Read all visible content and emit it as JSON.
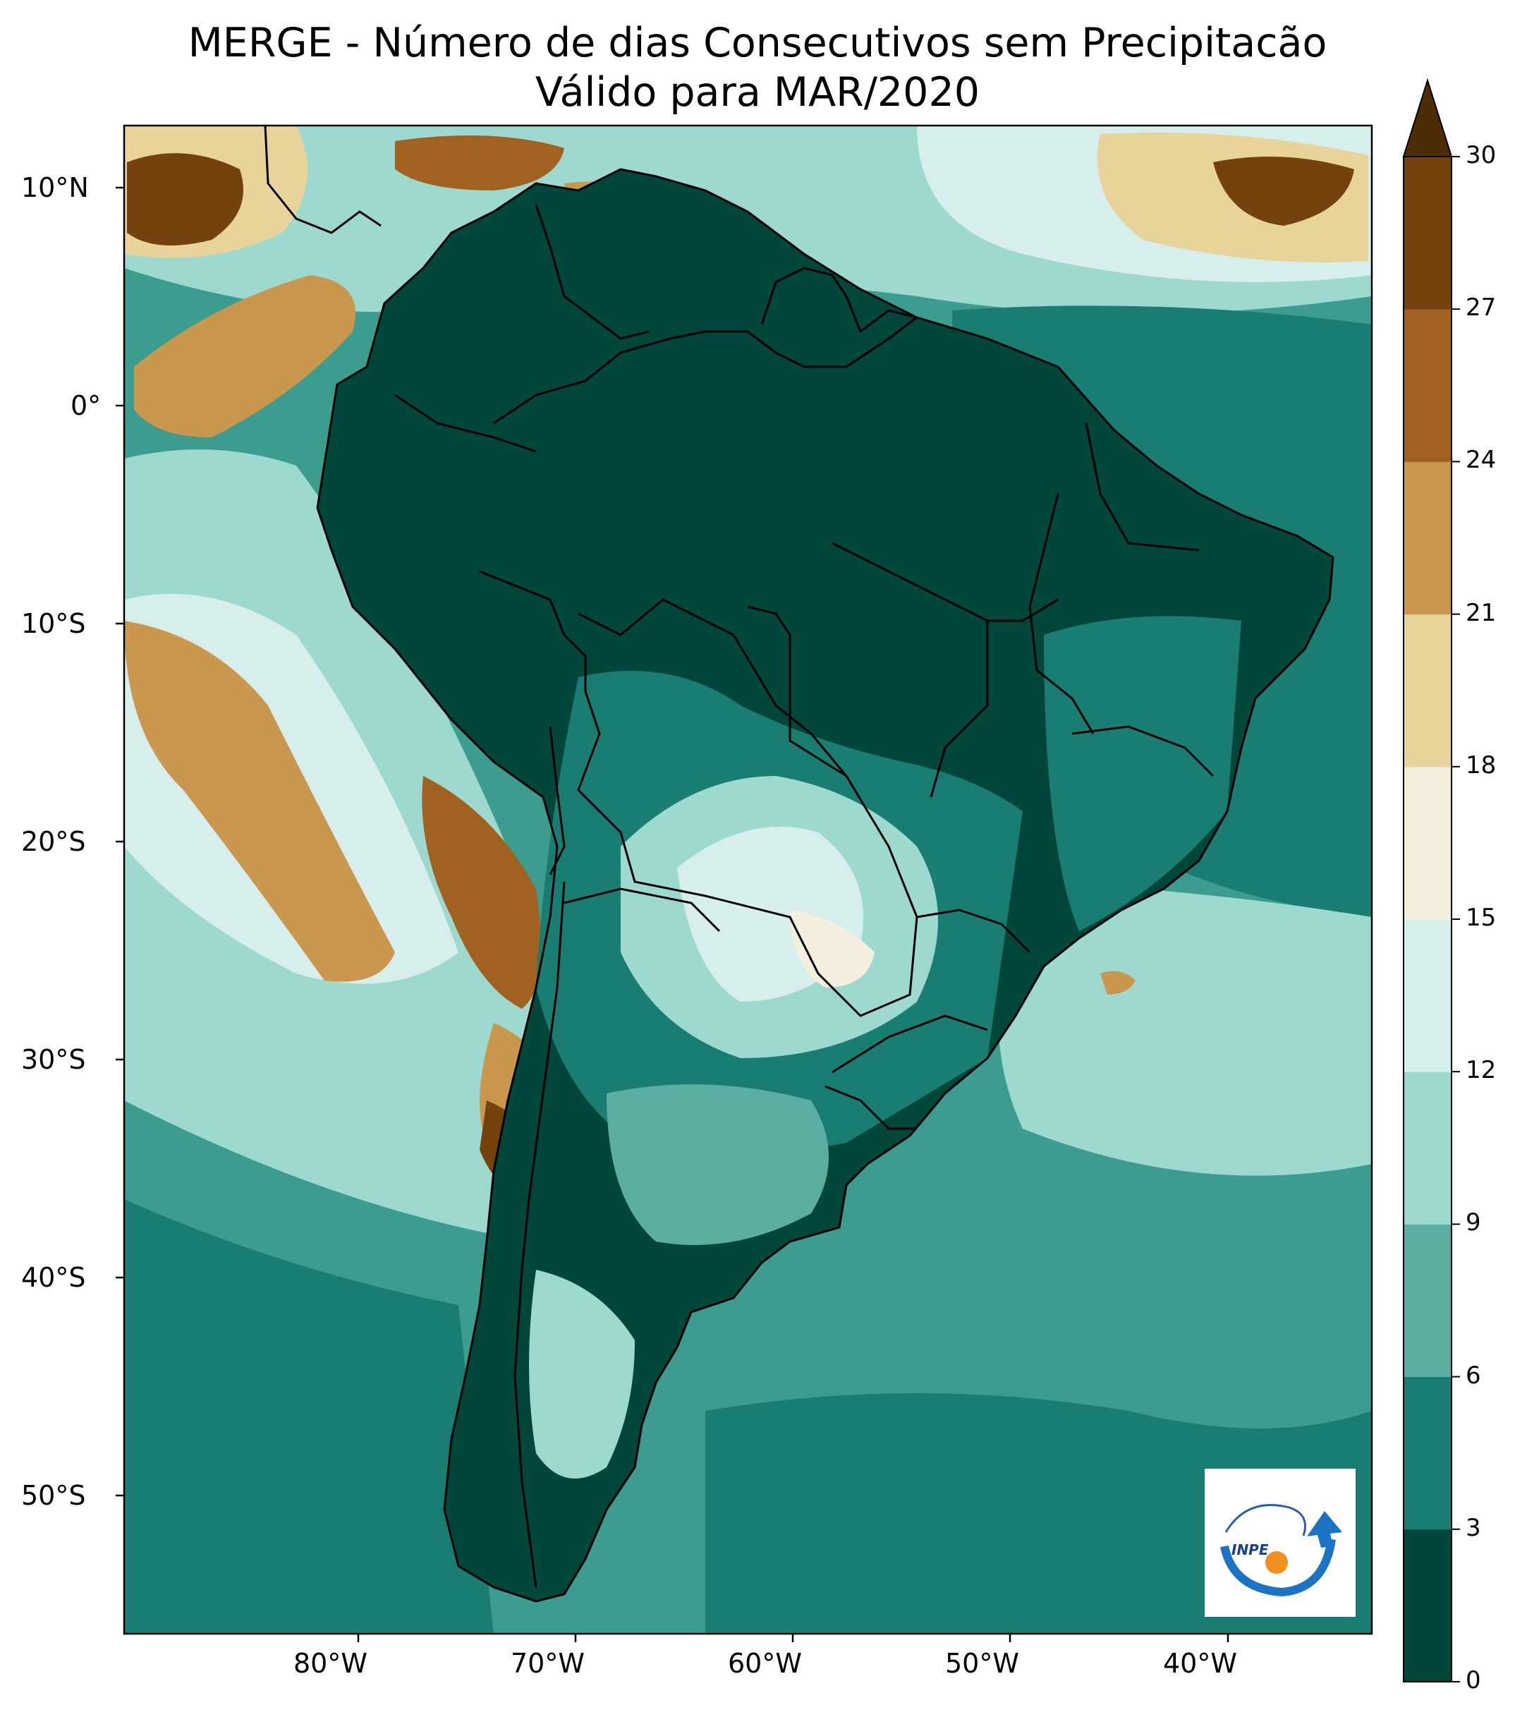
{
  "title": {
    "line1": "MERGE - Número de dias Consecutivos sem Precipitacão",
    "line2": "Válido para MAR/2020"
  },
  "axes": {
    "lon_ticks": [
      "80°W",
      "70°W",
      "60°W",
      "50°W",
      "40°W"
    ],
    "lat_ticks": [
      "10°N",
      "0°",
      "10°S",
      "20°S",
      "30°S",
      "40°S",
      "50°S"
    ],
    "extent": {
      "lon_min": -90,
      "lon_max": -32,
      "lat_min": -56,
      "lat_max": 13
    }
  },
  "colorbar": {
    "ticks": [
      "0",
      "3",
      "6",
      "9",
      "12",
      "15",
      "18",
      "21",
      "24",
      "27",
      "30"
    ],
    "colors": [
      "#01463b",
      "#1a7d72",
      "#5aafa2",
      "#9ed9cf",
      "#d6efec",
      "#f5efdd",
      "#e8d39b",
      "#c9974e",
      "#a16120",
      "#73420d"
    ],
    "extend_color": "#4d2d06",
    "extend": "max"
  },
  "map": {
    "ocean_color": "#3c9c8e",
    "land_color": "#01463b",
    "border_color": "#000000"
  },
  "logo": {
    "text": "INPE"
  }
}
